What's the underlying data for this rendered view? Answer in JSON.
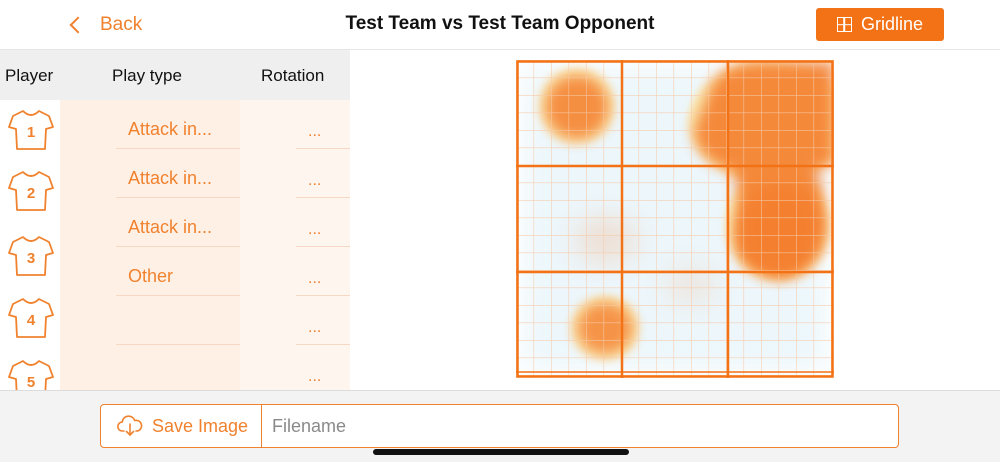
{
  "header": {
    "back_label": "Back",
    "title": "Test Team vs Test Team Opponent",
    "gridline_label": "Gridline"
  },
  "table": {
    "headers": {
      "player": "Player",
      "play_type": "Play type",
      "rotation": "Rotation"
    },
    "rows": [
      {
        "player": "1",
        "play_type": "Attack in...",
        "rotation": "..."
      },
      {
        "player": "2",
        "play_type": "Attack in...",
        "rotation": "..."
      },
      {
        "player": "3",
        "play_type": "Attack in...",
        "rotation": "..."
      },
      {
        "player": "4",
        "play_type": "Other",
        "rotation": "..."
      },
      {
        "player": "5",
        "play_type": "",
        "rotation": "..."
      },
      {
        "player": "",
        "play_type": "",
        "rotation": "..."
      }
    ]
  },
  "court": {
    "grid_cells": 9,
    "accent_color": "#f47216",
    "heat_color": "#f7893b",
    "glow_color": "#fce7a8"
  },
  "bottom": {
    "save_label": "Save Image",
    "filename_placeholder": "Filename",
    "filename_value": ""
  },
  "icons": {
    "back": "chevron-left-icon",
    "gridline": "grid-icon",
    "save": "cloud-download-icon",
    "jersey": "jersey-icon"
  }
}
